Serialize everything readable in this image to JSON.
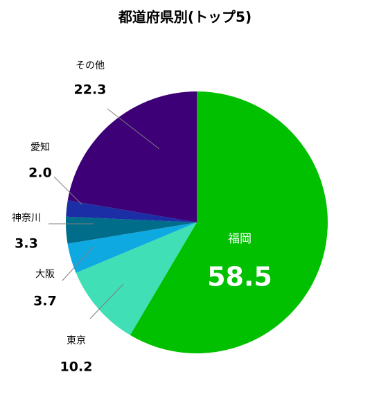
{
  "chart_data": {
    "type": "pie",
    "title": "都道府県別(トップ5)",
    "categories": [
      "福岡",
      "東京",
      "大阪",
      "神奈川",
      "愛知",
      "その他"
    ],
    "values": [
      58.5,
      10.2,
      3.7,
      3.3,
      2.0,
      22.3
    ],
    "value_labels": [
      "58.5",
      "10.2",
      "3.7",
      "3.3",
      "2.0",
      "22.3"
    ],
    "colors": [
      "#00c000",
      "#40dfb5",
      "#0fa9e2",
      "#006d8a",
      "#1b2ea6",
      "#3d0077"
    ]
  }
}
